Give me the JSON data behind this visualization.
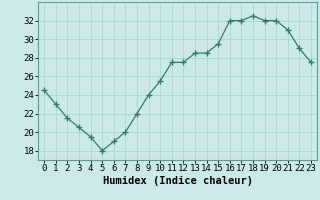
{
  "x": [
    0,
    1,
    2,
    3,
    4,
    5,
    6,
    7,
    8,
    9,
    10,
    11,
    12,
    13,
    14,
    15,
    16,
    17,
    18,
    19,
    20,
    21,
    22,
    23
  ],
  "y": [
    24.5,
    23.0,
    21.5,
    20.5,
    19.5,
    18.0,
    19.0,
    20.0,
    22.0,
    24.0,
    25.5,
    27.5,
    27.5,
    28.5,
    28.5,
    29.5,
    32.0,
    32.0,
    32.5,
    32.0,
    32.0,
    31.0,
    29.0,
    27.5
  ],
  "line_color": "#2e7d6e",
  "marker": "+",
  "marker_size": 4,
  "bg_color": "#cce9e9",
  "grid_color": "#afd4d4",
  "xlabel": "Humidex (Indice chaleur)",
  "xlim": [
    -0.5,
    23.5
  ],
  "ylim": [
    17,
    34
  ],
  "yticks": [
    18,
    20,
    22,
    24,
    26,
    28,
    30,
    32
  ],
  "xticks": [
    0,
    1,
    2,
    3,
    4,
    5,
    6,
    7,
    8,
    9,
    10,
    11,
    12,
    13,
    14,
    15,
    16,
    17,
    18,
    19,
    20,
    21,
    22,
    23
  ],
  "xlabel_fontsize": 7.5,
  "tick_fontsize": 6.5
}
